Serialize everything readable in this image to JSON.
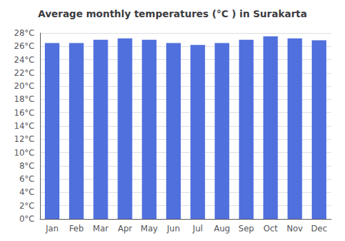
{
  "chart_data": {
    "type": "bar",
    "title": "Average monthly temperatures (°C ) in Surakarta",
    "categories": [
      "Jan",
      "Feb",
      "Mar",
      "Apr",
      "May",
      "Jun",
      "Jul",
      "Aug",
      "Sep",
      "Oct",
      "Nov",
      "Dec"
    ],
    "values": [
      26.5,
      26.5,
      27.0,
      27.2,
      27.0,
      26.5,
      26.2,
      26.5,
      27.0,
      27.5,
      27.2,
      26.9
    ],
    "ylim": [
      0,
      28
    ],
    "yticks": [
      {
        "value": 0,
        "label": "0°C"
      },
      {
        "value": 2,
        "label": "2°C"
      },
      {
        "value": 4,
        "label": "4°C"
      },
      {
        "value": 6,
        "label": "6°C"
      },
      {
        "value": 8,
        "label": "8°C"
      },
      {
        "value": 10,
        "label": "10°C"
      },
      {
        "value": 12,
        "label": "12°C"
      },
      {
        "value": 14,
        "label": "14°C"
      },
      {
        "value": 16,
        "label": "16°C"
      },
      {
        "value": 18,
        "label": "18°C"
      },
      {
        "value": 20,
        "label": "20°C"
      },
      {
        "value": 22,
        "label": "22°C"
      },
      {
        "value": 24,
        "label": "24°C"
      },
      {
        "value": 26,
        "label": "26°C"
      },
      {
        "value": 28,
        "label": "28°C"
      }
    ],
    "grid": true
  }
}
